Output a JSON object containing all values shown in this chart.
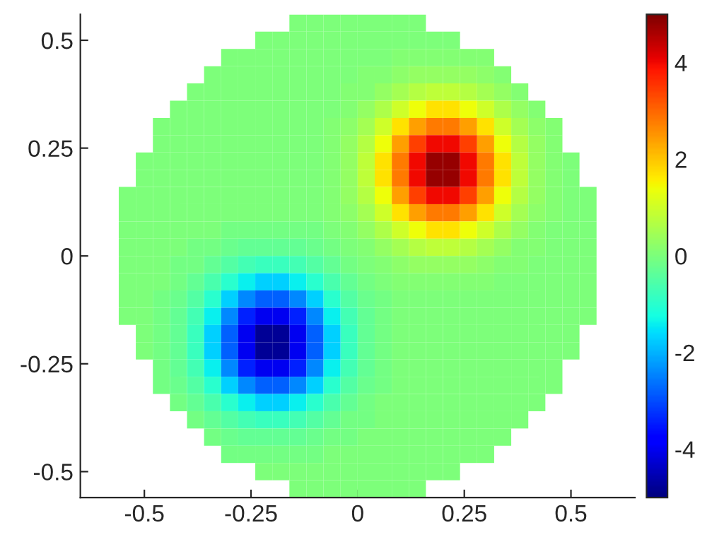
{
  "chart_data": {
    "type": "heatmap",
    "x": [
      -0.54,
      -0.5,
      -0.46,
      -0.42,
      -0.38,
      -0.34,
      -0.3,
      -0.26,
      -0.22,
      -0.18,
      -0.14,
      -0.1,
      -0.06,
      -0.02,
      0.02,
      0.06,
      0.1,
      0.14,
      0.18,
      0.22,
      0.26,
      0.3,
      0.34,
      0.38,
      0.42,
      0.46,
      0.5,
      0.54
    ],
    "y": [
      0.54,
      0.5,
      0.46,
      0.42,
      0.38,
      0.34,
      0.3,
      0.26,
      0.22,
      0.18,
      0.14,
      0.1,
      0.06,
      0.02,
      -0.02,
      -0.06,
      -0.1,
      -0.14,
      -0.18,
      -0.22,
      -0.26,
      -0.3,
      -0.34,
      -0.38,
      -0.42,
      -0.46,
      -0.5,
      -0.54
    ],
    "cells": [
      [
        null,
        null,
        null,
        null,
        null,
        null,
        null,
        null,
        null,
        null,
        0,
        0,
        0,
        0,
        0,
        0,
        0,
        0,
        null,
        null,
        null,
        null,
        null,
        null,
        null,
        null,
        null,
        null
      ],
      [
        null,
        null,
        null,
        null,
        null,
        null,
        null,
        null,
        0,
        0,
        0,
        0,
        0,
        0,
        0,
        0,
        0,
        0,
        0,
        0,
        null,
        null,
        null,
        null,
        null,
        null,
        null,
        null
      ],
      [
        null,
        null,
        null,
        null,
        null,
        null,
        0,
        0,
        0,
        0,
        0,
        0,
        0,
        0,
        0,
        0,
        0.1,
        0.1,
        0.1,
        0.1,
        0.1,
        0.1,
        null,
        null,
        null,
        null,
        null,
        null
      ],
      [
        null,
        null,
        null,
        null,
        null,
        0,
        0,
        0,
        0,
        0,
        0,
        0,
        0,
        0,
        0.1,
        0.1,
        0.2,
        0.3,
        0.3,
        0.3,
        0.3,
        0.2,
        0.1,
        null,
        null,
        null,
        null,
        null
      ],
      [
        null,
        null,
        null,
        null,
        0,
        0,
        0,
        0,
        0,
        0,
        0,
        0,
        0,
        0.1,
        0.1,
        0.3,
        0.5,
        0.7,
        0.8,
        0.8,
        0.7,
        0.5,
        0.3,
        0.1,
        null,
        null,
        null,
        null
      ],
      [
        null,
        null,
        null,
        0,
        0,
        0,
        0,
        0,
        0,
        0,
        0,
        0,
        0,
        0.1,
        0.3,
        0.6,
        1.0,
        1.4,
        1.7,
        1.7,
        1.4,
        1.0,
        0.6,
        0.3,
        0.1,
        null,
        null,
        null
      ],
      [
        null,
        null,
        0,
        0,
        0,
        0,
        0,
        0,
        0,
        0,
        0,
        0,
        0.1,
        0.2,
        0.5,
        1.0,
        1.7,
        2.4,
        2.8,
        2.8,
        2.4,
        1.7,
        1.0,
        0.5,
        0.2,
        0.1,
        null,
        null
      ],
      [
        null,
        null,
        0,
        0,
        0,
        0,
        0,
        0,
        0,
        0,
        0,
        0,
        0.1,
        0.3,
        0.7,
        1.4,
        2.4,
        3.4,
        4.0,
        4.0,
        3.4,
        2.4,
        1.4,
        0.7,
        0.3,
        0.1,
        null,
        null
      ],
      [
        null,
        0,
        0,
        0,
        0,
        0,
        0,
        0,
        0,
        0,
        0,
        0,
        0.1,
        0.3,
        0.8,
        1.7,
        2.8,
        4.0,
        4.8,
        4.8,
        4.0,
        2.8,
        1.7,
        0.8,
        0.3,
        0.1,
        0,
        null
      ],
      [
        null,
        0,
        0,
        0,
        0,
        0,
        0,
        0,
        0,
        0,
        0,
        0,
        0.1,
        0.3,
        0.8,
        1.7,
        2.8,
        4.0,
        4.8,
        4.8,
        4.0,
        2.8,
        1.7,
        0.8,
        0.3,
        0.1,
        0,
        null
      ],
      [
        0,
        0,
        0,
        0,
        0,
        0,
        0,
        0,
        0,
        0,
        0,
        0,
        0.1,
        0.3,
        0.7,
        1.4,
        2.4,
        3.4,
        4.0,
        4.0,
        3.4,
        2.4,
        1.4,
        0.7,
        0.3,
        0.1,
        0,
        0
      ],
      [
        0,
        0,
        0,
        0,
        0,
        0,
        0,
        0,
        0,
        0,
        0,
        0,
        0.1,
        0.2,
        0.5,
        1.0,
        1.7,
        2.4,
        2.8,
        2.8,
        2.4,
        1.7,
        1.0,
        0.5,
        0.2,
        0.1,
        0,
        0
      ],
      [
        0,
        0,
        0,
        0,
        0,
        0,
        -0.1,
        -0.1,
        -0.1,
        -0.1,
        -0.1,
        -0.1,
        0,
        0.1,
        0.3,
        0.6,
        1.0,
        1.4,
        1.7,
        1.7,
        1.4,
        1.0,
        0.6,
        0.3,
        0.1,
        0,
        0,
        0
      ],
      [
        0,
        0,
        0,
        0,
        -0.1,
        -0.1,
        -0.2,
        -0.3,
        -0.3,
        -0.3,
        -0.3,
        -0.2,
        -0.1,
        0,
        0.1,
        0.3,
        0.5,
        0.7,
        0.8,
        0.8,
        0.7,
        0.5,
        0.3,
        0.1,
        0.1,
        0,
        0,
        0
      ],
      [
        0,
        0,
        0,
        -0.1,
        -0.1,
        -0.3,
        -0.5,
        -0.7,
        -0.8,
        -0.8,
        -0.7,
        -0.5,
        -0.3,
        -0.1,
        0,
        0.1,
        0.2,
        0.3,
        0.3,
        0.3,
        0.3,
        0.2,
        0.1,
        0.1,
        0,
        0,
        0,
        0
      ],
      [
        0,
        0,
        0,
        -0.1,
        -0.3,
        -0.6,
        -1.0,
        -1.4,
        -1.7,
        -1.7,
        -1.4,
        -1.0,
        -0.6,
        -0.3,
        -0.1,
        0,
        0.1,
        0.1,
        0.1,
        0.1,
        0.1,
        0.1,
        0,
        0,
        0,
        0,
        0,
        0
      ],
      [
        0,
        0,
        -0.1,
        -0.2,
        -0.5,
        -1.0,
        -1.7,
        -2.4,
        -2.8,
        -2.8,
        -2.4,
        -1.7,
        -1.0,
        -0.5,
        -0.2,
        -0.1,
        0,
        0,
        0,
        0,
        0,
        0,
        0,
        0,
        0,
        0,
        0,
        0
      ],
      [
        0,
        0,
        -0.1,
        -0.3,
        -0.7,
        -1.4,
        -2.4,
        -3.4,
        -4.0,
        -4.0,
        -3.4,
        -2.4,
        -1.4,
        -0.7,
        -0.3,
        -0.1,
        0,
        0,
        0,
        0,
        0,
        0,
        0,
        0,
        0,
        0,
        0,
        0
      ],
      [
        null,
        0,
        -0.1,
        -0.3,
        -0.8,
        -1.7,
        -2.8,
        -4.0,
        -4.8,
        -4.8,
        -4.0,
        -2.8,
        -1.7,
        -0.8,
        -0.3,
        -0.1,
        0,
        0,
        0,
        0,
        0,
        0,
        0,
        0,
        0,
        0,
        0,
        null
      ],
      [
        null,
        0,
        -0.1,
        -0.3,
        -0.8,
        -1.7,
        -2.8,
        -4.0,
        -4.8,
        -4.8,
        -4.0,
        -2.8,
        -1.7,
        -0.8,
        -0.3,
        -0.1,
        0,
        0,
        0,
        0,
        0,
        0,
        0,
        0,
        0,
        0,
        0,
        null
      ],
      [
        null,
        null,
        -0.1,
        -0.3,
        -0.7,
        -1.4,
        -2.4,
        -3.4,
        -4.0,
        -4.0,
        -3.4,
        -2.4,
        -1.4,
        -0.7,
        -0.3,
        -0.1,
        0,
        0,
        0,
        0,
        0,
        0,
        0,
        0,
        0,
        0,
        null,
        null
      ],
      [
        null,
        null,
        -0.1,
        -0.2,
        -0.5,
        -1.0,
        -1.7,
        -2.4,
        -2.8,
        -2.8,
        -2.4,
        -1.7,
        -1.0,
        -0.5,
        -0.2,
        -0.1,
        0,
        0,
        0,
        0,
        0,
        0,
        0,
        0,
        0,
        0,
        null,
        null
      ],
      [
        null,
        null,
        null,
        -0.1,
        -0.3,
        -0.6,
        -1.0,
        -1.4,
        -1.7,
        -1.7,
        -1.4,
        -1.0,
        -0.6,
        -0.3,
        -0.1,
        0,
        0,
        0,
        0,
        0,
        0,
        0,
        0,
        0,
        0,
        null,
        null,
        null
      ],
      [
        null,
        null,
        null,
        null,
        -0.1,
        -0.3,
        -0.5,
        -0.7,
        -0.8,
        -0.8,
        -0.7,
        -0.5,
        -0.3,
        -0.1,
        -0.1,
        0,
        0,
        0,
        0,
        0,
        0,
        0,
        0,
        0,
        null,
        null,
        null,
        null
      ],
      [
        null,
        null,
        null,
        null,
        null,
        -0.1,
        -0.2,
        -0.3,
        -0.3,
        -0.3,
        -0.3,
        -0.2,
        -0.1,
        -0.1,
        0,
        0,
        0,
        0,
        0,
        0,
        0,
        0,
        0,
        null,
        null,
        null,
        null,
        null
      ],
      [
        null,
        null,
        null,
        null,
        null,
        null,
        -0.1,
        -0.1,
        -0.1,
        -0.1,
        -0.1,
        -0.1,
        0,
        0,
        0,
        0,
        0,
        0,
        0,
        0,
        0,
        0,
        null,
        null,
        null,
        null,
        null,
        null
      ],
      [
        null,
        null,
        null,
        null,
        null,
        null,
        null,
        null,
        0,
        0,
        0,
        0,
        0,
        0,
        0,
        0,
        0,
        0,
        0,
        0,
        null,
        null,
        null,
        null,
        null,
        null,
        null,
        null
      ],
      [
        null,
        null,
        null,
        null,
        null,
        null,
        null,
        null,
        null,
        null,
        0,
        0,
        0,
        0,
        0,
        0,
        0,
        0,
        null,
        null,
        null,
        null,
        null,
        null,
        null,
        null,
        null,
        null
      ]
    ],
    "clim": [
      -5,
      5
    ],
    "cticks": [
      -4,
      -2,
      0,
      2,
      4
    ],
    "xlim": [
      -0.65,
      0.65
    ],
    "ylim": [
      -0.56,
      0.56
    ],
    "xticks": [
      -0.5,
      -0.25,
      0,
      0.25,
      0.5
    ],
    "yticks": [
      -0.5,
      -0.25,
      0,
      0.25,
      0.5
    ],
    "grid": false
  }
}
